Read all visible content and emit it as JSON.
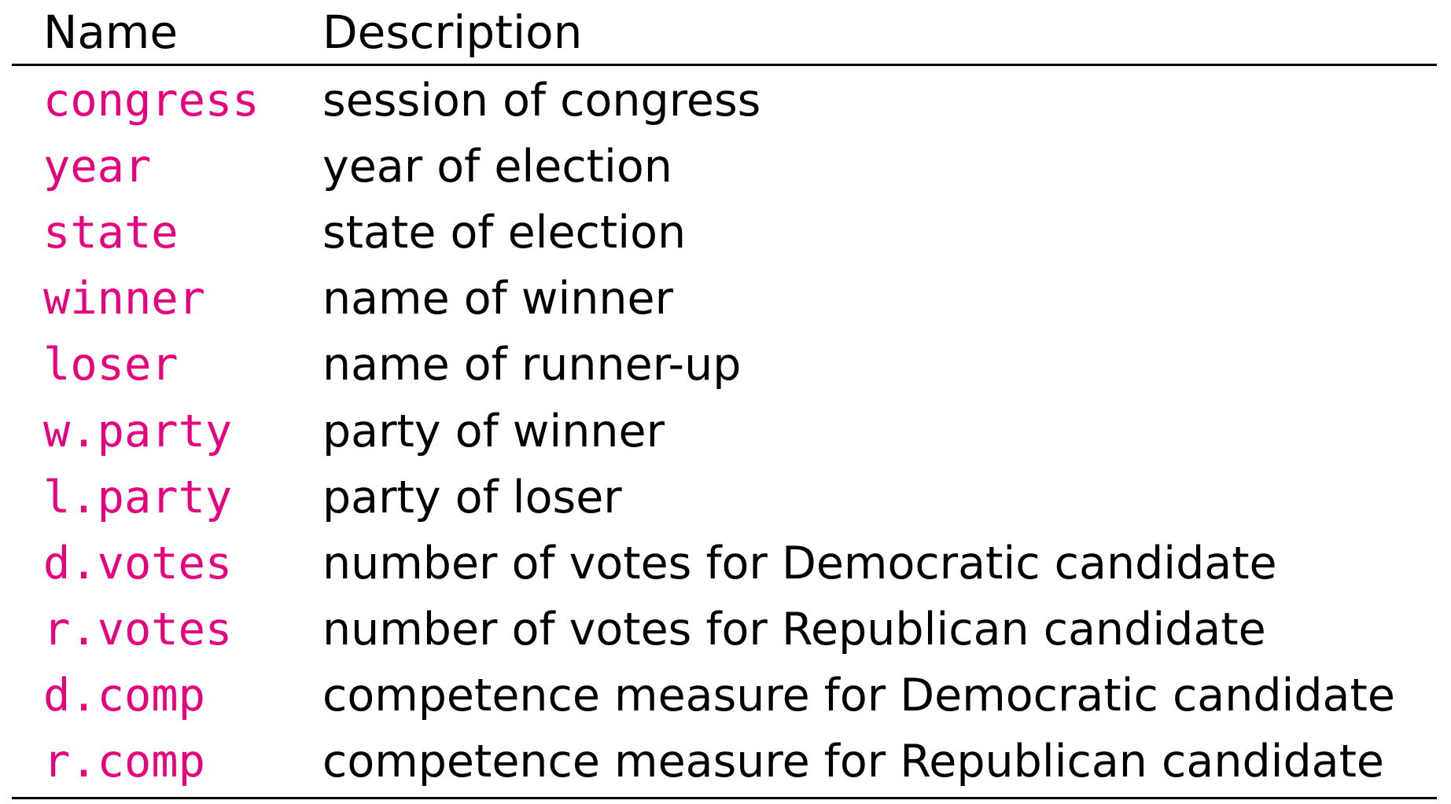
{
  "table": {
    "headers": {
      "name": "Name",
      "description": "Description"
    },
    "rows": [
      {
        "name": "congress",
        "description": "session of congress"
      },
      {
        "name": "year",
        "description": "year of election"
      },
      {
        "name": "state",
        "description": "state of election"
      },
      {
        "name": "winner",
        "description": "name of winner"
      },
      {
        "name": "loser",
        "description": "name of runner-up"
      },
      {
        "name": "w.party",
        "description": "party of winner"
      },
      {
        "name": "l.party",
        "description": "party of loser"
      },
      {
        "name": "d.votes",
        "description": "number of votes for Democratic candidate"
      },
      {
        "name": "r.votes",
        "description": "number of votes for Republican candidate"
      },
      {
        "name": "d.comp",
        "description": "competence measure for Democratic candidate"
      },
      {
        "name": "r.comp",
        "description": "competence measure for Republican candidate"
      }
    ]
  },
  "colors": {
    "variable_name": "#e6007e",
    "text": "#000000",
    "rule": "#000000"
  }
}
